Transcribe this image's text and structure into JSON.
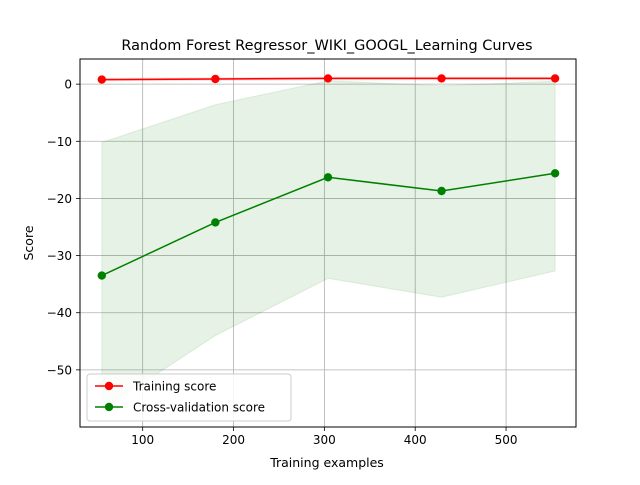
{
  "chart_data": {
    "type": "line",
    "title": "Random Forest Regressor_WIKI_GOOGL_Learning Curves",
    "xlabel": "Training examples",
    "ylabel": "Score",
    "xlim": [
      31,
      577
    ],
    "ylim": [
      -60,
      4.4
    ],
    "xticks": [
      100,
      200,
      300,
      400,
      500
    ],
    "xtick_labels": [
      "100",
      "200",
      "300",
      "400",
      "500"
    ],
    "yticks": [
      0,
      -10,
      -20,
      -30,
      -40,
      -50
    ],
    "ytick_labels": [
      "0",
      "−10",
      "−20",
      "−30",
      "−40",
      "−50"
    ],
    "grid": true,
    "legend_position": "lower-left",
    "x": [
      55,
      180,
      304,
      429,
      554
    ],
    "series": [
      {
        "name": "Training score",
        "color": "#ff0000",
        "values": [
          0.8,
          0.9,
          1.0,
          1.0,
          1.0
        ],
        "band_lower": [
          0.6,
          0.7,
          0.8,
          0.8,
          0.8
        ],
        "band_upper": [
          1.0,
          1.1,
          1.2,
          1.2,
          1.2
        ],
        "band_color": "#ff0000"
      },
      {
        "name": "Cross-validation score",
        "color": "#008000",
        "values": [
          -33.5,
          -24.2,
          -16.3,
          -18.7,
          -15.6
        ],
        "band_lower": [
          -57,
          -44,
          -34,
          -37.3,
          -32.7
        ],
        "band_upper": [
          -10.2,
          -3.6,
          0.6,
          -0.3,
          0.5
        ],
        "band_color": "#008000"
      }
    ]
  }
}
